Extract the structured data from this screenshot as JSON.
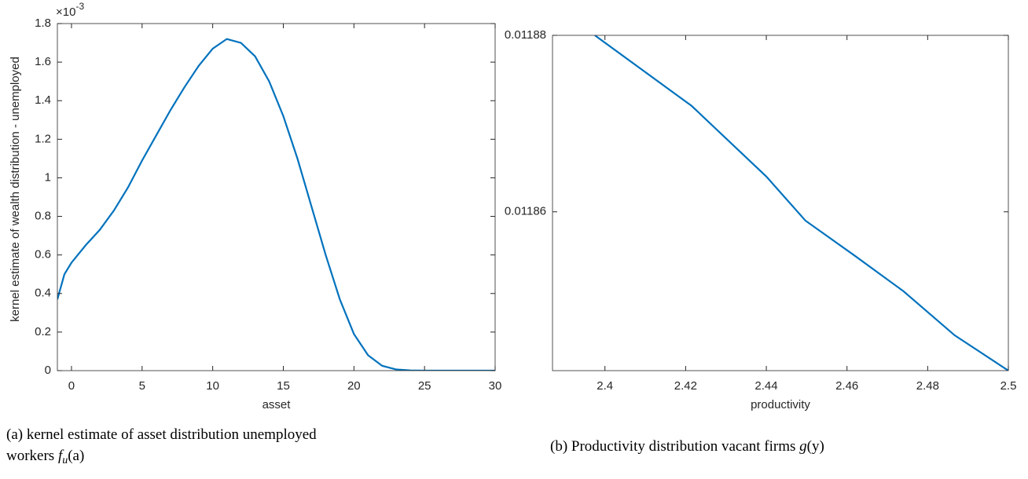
{
  "chart_data": [
    {
      "type": "line",
      "xlabel": "asset",
      "ylabel": "kernel estimate of wealth distribution - unemployed",
      "y_multiplier_base": "×10",
      "y_multiplier_exponent": "-3",
      "caption": "(a) kernel estimate of asset distribution unemployed workers",
      "caption_math": [
        "f",
        "u",
        "(a)"
      ],
      "x": [
        -1,
        -0.5,
        0,
        1,
        2,
        3,
        4,
        5,
        6,
        7,
        8,
        9,
        10,
        11,
        12,
        13,
        14,
        15,
        16,
        17,
        18,
        19,
        20,
        21,
        22,
        23,
        24,
        25,
        26,
        27,
        28,
        29,
        30
      ],
      "series": [
        {
          "color": "#0072bd",
          "values": [
            0.37,
            0.5,
            0.56,
            0.65,
            0.73,
            0.83,
            0.95,
            1.09,
            1.22,
            1.35,
            1.47,
            1.58,
            1.67,
            1.72,
            1.7,
            1.63,
            1.5,
            1.32,
            1.1,
            0.85,
            0.6,
            0.37,
            0.19,
            0.08,
            0.025,
            0.006,
            0.001,
            0,
            0,
            0,
            0,
            0,
            0
          ]
        }
      ],
      "xlim": [
        -1,
        30
      ],
      "ylim": [
        0,
        1.8
      ],
      "xticks": [
        0,
        5,
        10,
        15,
        20,
        25,
        30
      ],
      "yticks": [
        0,
        0.2,
        0.4,
        0.6,
        0.8,
        1,
        1.2,
        1.4,
        1.6,
        1.8
      ],
      "grid": false,
      "box": true
    },
    {
      "type": "line",
      "xlabel": "productivity",
      "caption": "(b) Productivity distribution vacant firms",
      "caption_math": [
        "g",
        "",
        "(y)"
      ],
      "x": [
        2.3975,
        2.4215,
        2.44,
        2.4497,
        2.462,
        2.474,
        2.4867,
        2.5
      ],
      "series": [
        {
          "color": "#0072bd",
          "values": [
            0.01188,
            0.011872,
            0.011864,
            0.011859,
            0.011855,
            0.011851,
            0.011846,
            0.011842
          ]
        }
      ],
      "xlim": [
        2.387,
        2.5
      ],
      "ylim": [
        0.011842,
        0.01188
      ],
      "xticks": [
        2.4,
        2.42,
        2.44,
        2.46,
        2.48,
        2.5
      ],
      "yticks": [
        0.01186,
        0.01188
      ],
      "grid": false,
      "box": true
    }
  ]
}
